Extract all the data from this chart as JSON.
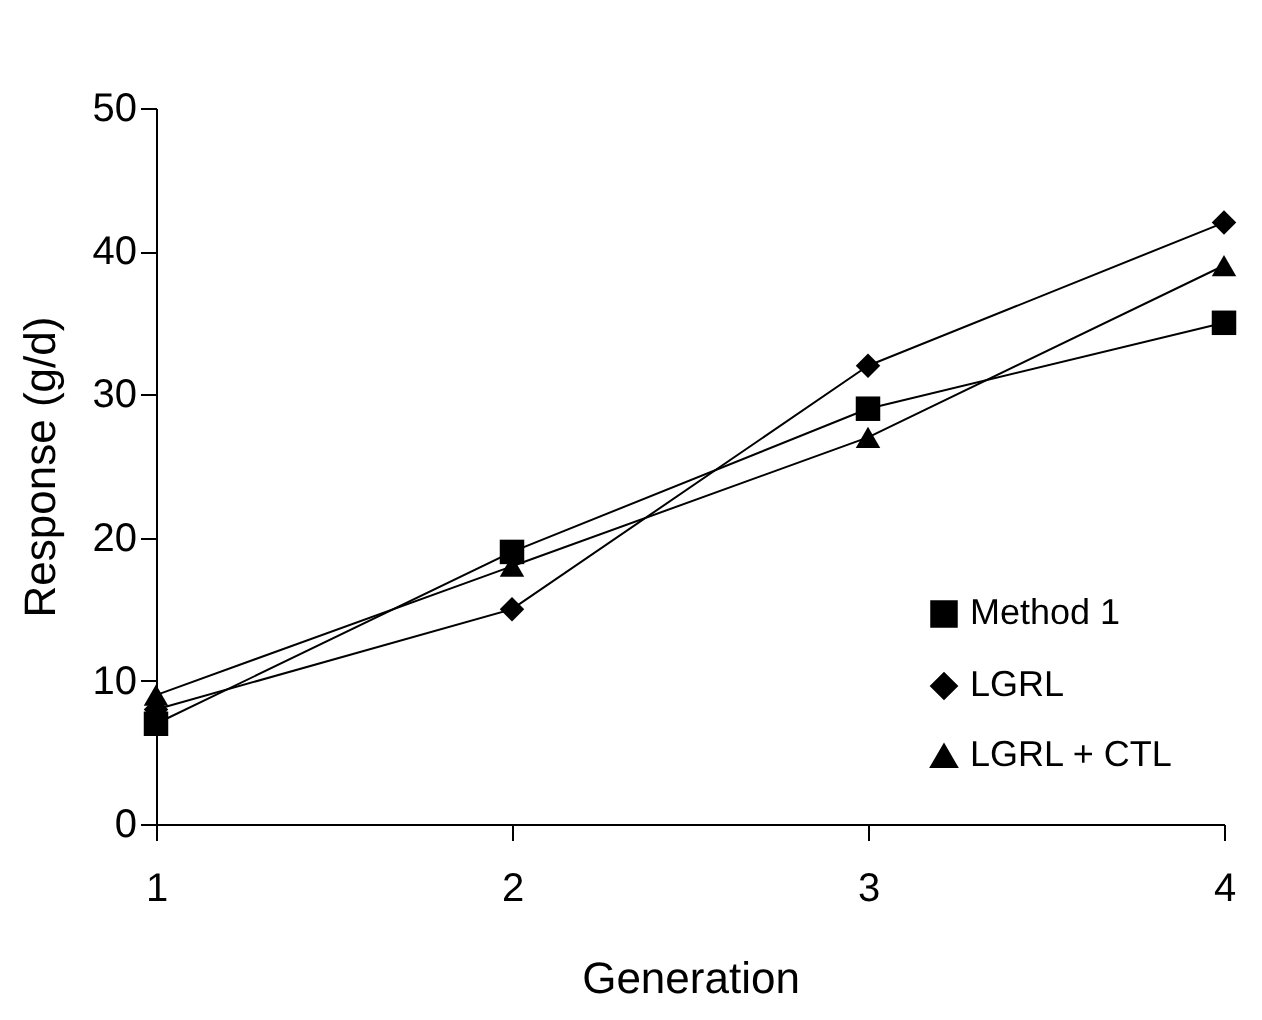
{
  "chart_data": {
    "type": "line",
    "xlabel": "Generation",
    "ylabel": "Response (g/d)",
    "x": [
      1,
      2,
      3,
      4
    ],
    "series": [
      {
        "name": "Method 1",
        "color": "#000000",
        "marker": "square",
        "values": [
          7,
          19,
          29,
          35
        ]
      },
      {
        "name": "LGRL",
        "color": "#000000",
        "marker": "diamond",
        "values": [
          8,
          15,
          32,
          42
        ]
      },
      {
        "name": "LGRL + CTL",
        "color": "#000000",
        "marker": "triangle",
        "values": [
          9,
          18,
          27,
          39
        ]
      }
    ],
    "xlim": [
      1,
      4
    ],
    "xticks": [
      1,
      2,
      3,
      4
    ],
    "ylim": [
      0,
      50
    ],
    "yticks": [
      0,
      10,
      20,
      30,
      40,
      50
    ],
    "grid": false,
    "legend": "bottom right",
    "line_style": "solid"
  }
}
